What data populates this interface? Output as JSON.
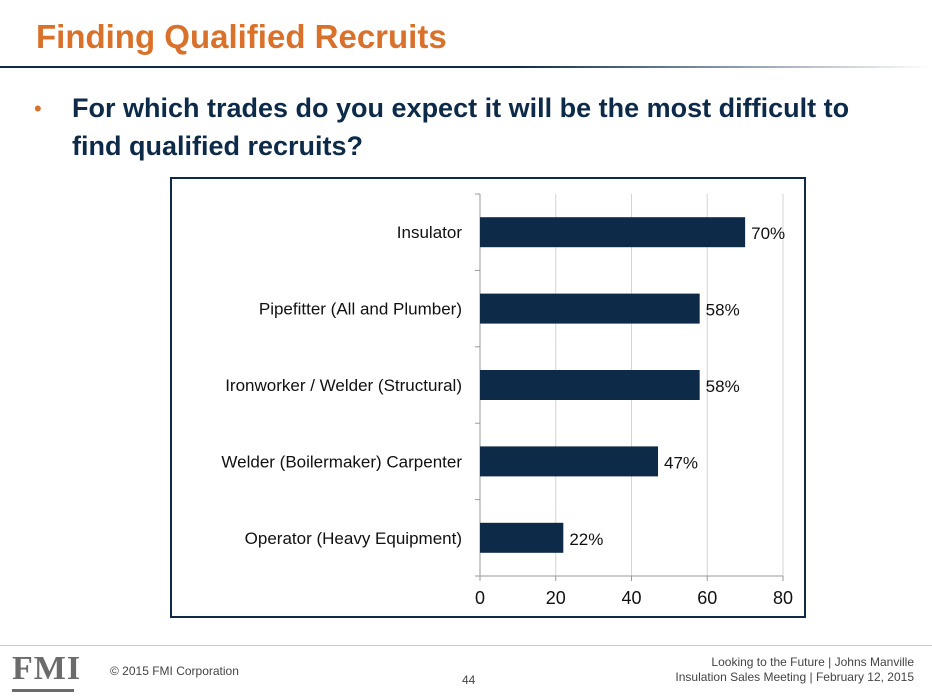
{
  "slide": {
    "title": "Finding Qualified Recruits",
    "bullet": "•",
    "question": "For which trades do you expect it will be the most difficult to find qualified recruits?"
  },
  "chart_data": {
    "type": "bar",
    "orientation": "horizontal",
    "categories": [
      "Insulator",
      "Pipefitter (All and Plumber)",
      "Ironworker / Welder (Structural)",
      "Welder (Boilermaker) Carpenter",
      "Operator (Heavy Equipment)"
    ],
    "values": [
      70,
      58,
      58,
      47,
      22
    ],
    "data_labels": [
      "70%",
      "58%",
      "58%",
      "47%",
      "22%"
    ],
    "xlim": [
      0,
      80
    ],
    "xticks": [
      0,
      20,
      40,
      60,
      80
    ],
    "grid": true,
    "bar_color": "#0d2a48"
  },
  "footer": {
    "logo": "FMI",
    "copyright": "© 2015 FMI Corporation",
    "page_number": "44",
    "line1": "Looking to the Future  |  Johns Manville",
    "line2": "Insulation Sales Meeting  |  February 12, 2015"
  },
  "colors": {
    "accent": "#d9712b",
    "navy": "#0d2a48"
  }
}
